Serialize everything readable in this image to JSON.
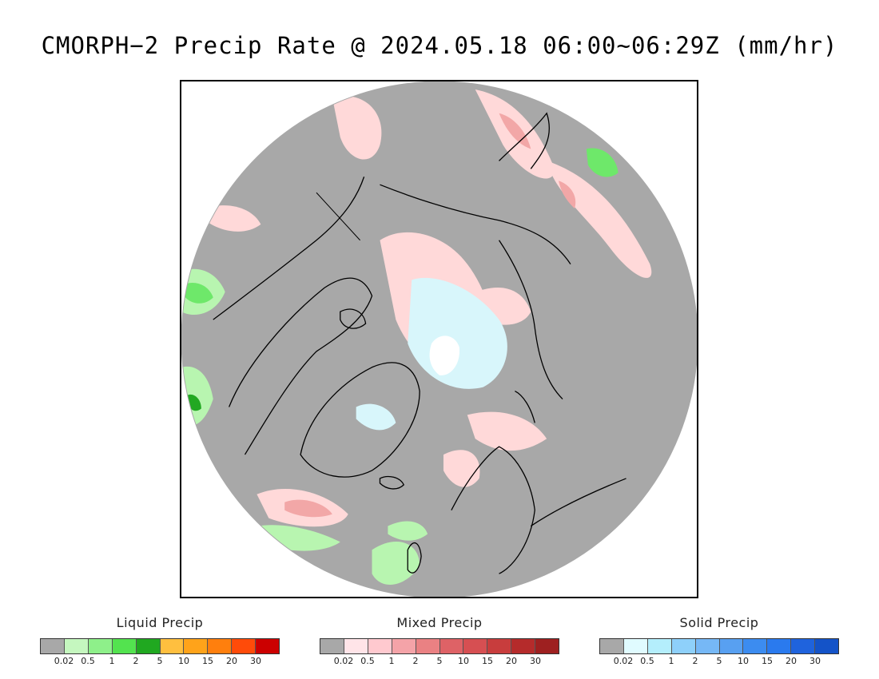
{
  "title": "CMORPH−2 Precip Rate @ 2024.05.18 06:00~06:29Z (mm/hr)",
  "colors": {
    "background": "#a8a8a8",
    "coast": "#000000",
    "liquid_light": "#b8f5b0",
    "liquid_mid": "#6ee86a",
    "liquid_dark": "#22a822",
    "mixed_light": "#ffd9d9",
    "mixed_mid": "#f2a7a7",
    "mixed_dark": "#d65858",
    "solid_light": "#d8f6fb",
    "solid_white": "#ffffff"
  },
  "legends": [
    {
      "title": "Liquid Precip",
      "colors": [
        "#a8a8a8",
        "#c5f7bf",
        "#8ef08a",
        "#53e34f",
        "#20a820",
        "#ffbf3f",
        "#ffa31a",
        "#ff7f0d",
        "#ff4b09",
        "#cc0000"
      ],
      "ticks": [
        "0.02",
        "0.5",
        "1",
        "2",
        "5",
        "10",
        "15",
        "20",
        "30"
      ]
    },
    {
      "title": "Mixed Precip",
      "colors": [
        "#a8a8a8",
        "#ffe4e8",
        "#ffc9cf",
        "#f4a3a8",
        "#ea8183",
        "#de6266",
        "#d64f52",
        "#c83d3d",
        "#b52b2b",
        "#9e2020"
      ],
      "ticks": [
        "0.02",
        "0.5",
        "1",
        "2",
        "5",
        "10",
        "15",
        "20",
        "30"
      ]
    },
    {
      "title": "Solid Precip",
      "colors": [
        "#a8a8a8",
        "#e0fbff",
        "#b4eefc",
        "#8ed0fa",
        "#76b8f6",
        "#58a0f1",
        "#3c8cf0",
        "#2a7aee",
        "#1f63dd",
        "#1453c8"
      ],
      "ticks": [
        "0.02",
        "0.5",
        "1",
        "2",
        "5",
        "10",
        "15",
        "20",
        "30"
      ]
    }
  ]
}
